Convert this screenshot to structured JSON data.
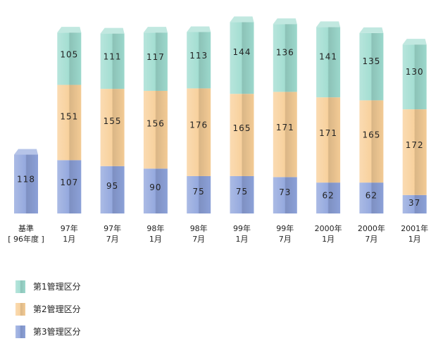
{
  "chart_data": {
    "type": "bar",
    "stacked": true,
    "title": "",
    "xlabel": "",
    "ylabel": "",
    "categories": [
      {
        "line1": "基準",
        "line2": "[ 96年度 ]"
      },
      {
        "line1": "97年",
        "line2": "1月"
      },
      {
        "line1": "97年",
        "line2": "7月"
      },
      {
        "line1": "98年",
        "line2": "1月"
      },
      {
        "line1": "98年",
        "line2": "7月"
      },
      {
        "line1": "99年",
        "line2": "1月"
      },
      {
        "line1": "99年",
        "line2": "7月"
      },
      {
        "line1": "2000年",
        "line2": "1月"
      },
      {
        "line1": "2000年",
        "line2": "7月"
      },
      {
        "line1": "2001年",
        "line2": "1月"
      }
    ],
    "series": [
      {
        "name": "第3管理区分",
        "color": "#8fa4dc",
        "values": [
          118,
          107,
          95,
          90,
          75,
          75,
          73,
          62,
          62,
          37
        ]
      },
      {
        "name": "第2管理区分",
        "color": "#f8cf98",
        "values": [
          null,
          151,
          155,
          156,
          176,
          165,
          171,
          171,
          165,
          172
        ]
      },
      {
        "name": "第1管理区分",
        "color": "#9fdcd0",
        "values": [
          null,
          105,
          111,
          117,
          113,
          144,
          136,
          141,
          135,
          130
        ]
      }
    ],
    "legend_position": "bottom-left",
    "grid": false
  }
}
